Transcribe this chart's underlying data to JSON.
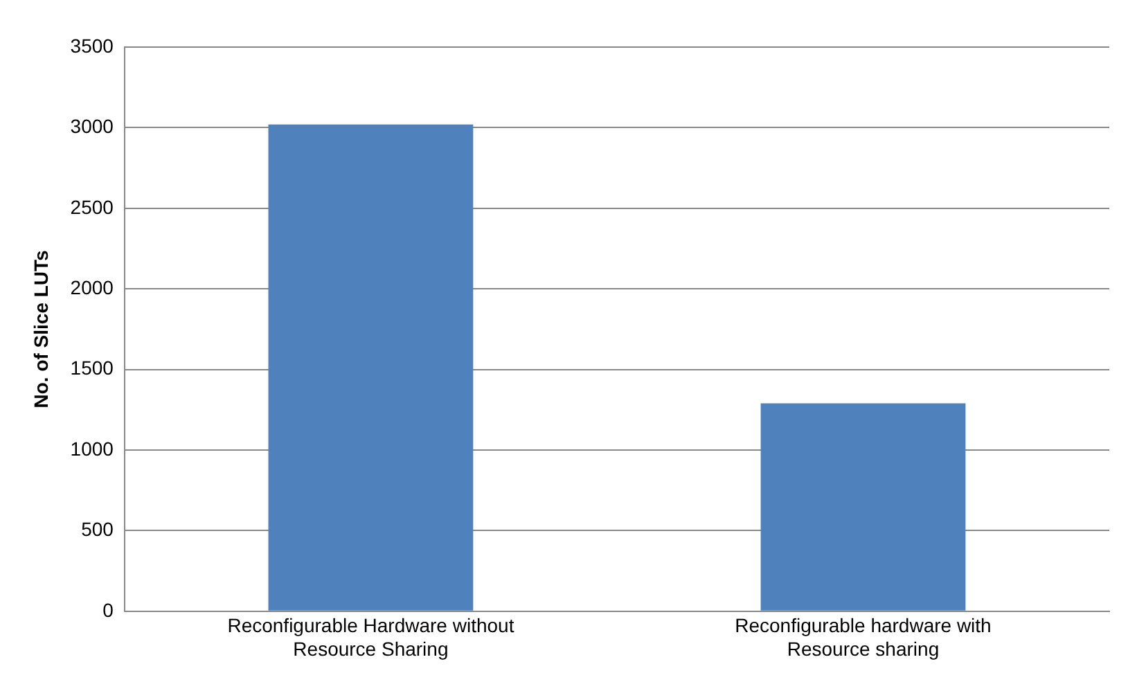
{
  "chart_data": {
    "type": "bar",
    "ylabel": "No. of Slice LUTs",
    "categories": [
      "Reconfigurable Hardware without Resource Sharing",
      "Reconfigurable hardware with Resource sharing"
    ],
    "values": [
      3020,
      1290
    ],
    "color": "#4f81bd",
    "ylim": [
      0,
      3500
    ],
    "yticks": [
      0,
      500,
      1000,
      1500,
      2000,
      2500,
      3000,
      3500
    ],
    "grid": "y",
    "legend": false
  }
}
